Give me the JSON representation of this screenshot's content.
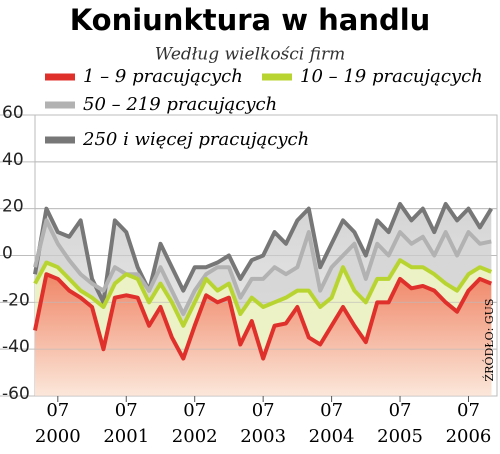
{
  "chart_data": {
    "type": "line",
    "title": "Koniunktura w handlu",
    "subtitle": "Według wielkości firm",
    "source": "ŹRÓDŁO: GUS",
    "x": [
      "2000-03",
      "2000-05",
      "2000-07",
      "2000-09",
      "2000-11",
      "2001-01",
      "2001-03",
      "2001-05",
      "2001-07",
      "2001-09",
      "2001-11",
      "2002-01",
      "2002-03",
      "2002-05",
      "2002-07",
      "2002-09",
      "2002-11",
      "2003-01",
      "2003-03",
      "2003-05",
      "2003-07",
      "2003-09",
      "2003-11",
      "2004-01",
      "2004-03",
      "2004-05",
      "2004-07",
      "2004-09",
      "2004-11",
      "2005-01",
      "2005-03",
      "2005-05",
      "2005-07",
      "2005-09",
      "2005-11",
      "2006-01",
      "2006-03",
      "2006-05",
      "2006-07",
      "2006-09",
      "2006-11"
    ],
    "xlim": [
      "2000-03",
      "2006-12"
    ],
    "xticks": [
      {
        "value": "2000-07",
        "label": "07"
      },
      {
        "value": "2001-07",
        "label": "07"
      },
      {
        "value": "2002-07",
        "label": "07"
      },
      {
        "value": "2003-07",
        "label": "07"
      },
      {
        "value": "2004-07",
        "label": "07"
      },
      {
        "value": "2005-07",
        "label": "07"
      },
      {
        "value": "2006-07",
        "label": "07"
      }
    ],
    "xtick_years": [
      "2000",
      "2001",
      "2002",
      "2003",
      "2004",
      "2005",
      "2006"
    ],
    "ylim": [
      -60,
      60
    ],
    "yticks": [
      -60,
      -40,
      -20,
      0,
      20,
      40,
      60
    ],
    "grid": true,
    "series": [
      {
        "name": "1 – 9 pracujących",
        "color": "#e0302c",
        "values": [
          -32,
          -8,
          -10,
          -15,
          -18,
          -22,
          -40,
          -18,
          -17,
          -18,
          -30,
          -22,
          -35,
          -44,
          -30,
          -17,
          -20,
          -18,
          -38,
          -28,
          -44,
          -30,
          -29,
          -22,
          -35,
          -38,
          -30,
          -22,
          -30,
          -37,
          -20,
          -20,
          -10,
          -14,
          -13,
          -15,
          -20,
          -24,
          -15,
          -10,
          -12
        ]
      },
      {
        "name": "10 – 19 pracujących",
        "color": "#b8d430",
        "values": [
          -12,
          -3,
          -5,
          -10,
          -15,
          -18,
          -22,
          -12,
          -8,
          -10,
          -20,
          -12,
          -20,
          -30,
          -20,
          -10,
          -15,
          -12,
          -25,
          -18,
          -22,
          -20,
          -18,
          -15,
          -15,
          -22,
          -18,
          -5,
          -15,
          -20,
          -10,
          -10,
          -2,
          -5,
          -5,
          -8,
          -12,
          -15,
          -8,
          -5,
          -7
        ]
      },
      {
        "name": "50 – 219 pracujących",
        "color": "#b2b2b2",
        "values": [
          -5,
          15,
          5,
          -2,
          -8,
          -12,
          -15,
          -5,
          -8,
          -8,
          -15,
          -5,
          -15,
          -25,
          -15,
          -8,
          -5,
          -5,
          -18,
          -10,
          -10,
          -5,
          -8,
          -5,
          10,
          -15,
          -5,
          0,
          5,
          -10,
          5,
          0,
          10,
          5,
          8,
          0,
          10,
          0,
          10,
          5,
          6
        ]
      },
      {
        "name": "250 i więcej pracujących",
        "color": "#777777",
        "values": [
          -8,
          20,
          10,
          8,
          15,
          -10,
          -20,
          15,
          10,
          -5,
          -15,
          5,
          -5,
          -15,
          -5,
          -5,
          -3,
          0,
          -10,
          -2,
          0,
          10,
          5,
          15,
          20,
          -5,
          5,
          15,
          10,
          0,
          15,
          10,
          22,
          15,
          20,
          10,
          22,
          15,
          20,
          12,
          20
        ]
      }
    ]
  }
}
